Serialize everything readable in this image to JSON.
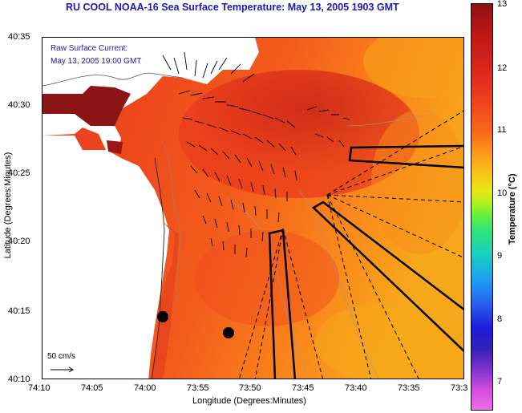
{
  "title": "RU COOL  NOAA-16  Sea Surface Temperature:  May 13, 2005 1903 GMT",
  "overlay_lines": [
    "Raw Surface Current:",
    "May 13, 2005 19:00 GMT"
  ],
  "scale_label": "50 cm/s",
  "axes": {
    "x_label": "Longitude (Degrees:Minutes)",
    "y_label": "Latitude (Degrees:Minutes)",
    "x_ticks": [
      "74:10",
      "74:05",
      "74:00",
      "73:55",
      "73:50",
      "73:45",
      "73:40",
      "73:35",
      "73:3"
    ],
    "y_ticks": [
      "40:35",
      "40:30",
      "40:25",
      "40:20",
      "40:15",
      "40:10"
    ]
  },
  "colorbar": {
    "label": "Temperature (°C)",
    "ticks": [
      "13",
      "12",
      "11",
      "10",
      "9",
      "8",
      "7"
    ]
  }
}
